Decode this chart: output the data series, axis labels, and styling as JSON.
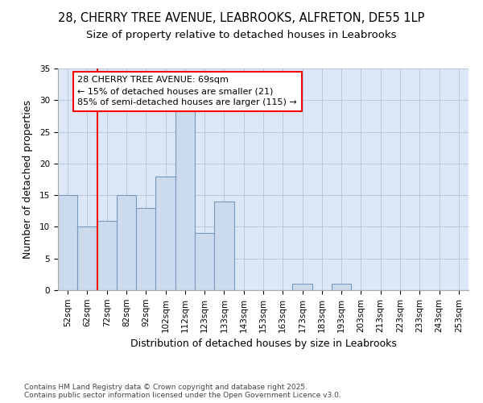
{
  "title_line1": "28, CHERRY TREE AVENUE, LEABROOKS, ALFRETON, DE55 1LP",
  "title_line2": "Size of property relative to detached houses in Leabrooks",
  "xlabel": "Distribution of detached houses by size in Leabrooks",
  "ylabel": "Number of detached properties",
  "categories": [
    "52sqm",
    "62sqm",
    "72sqm",
    "82sqm",
    "92sqm",
    "102sqm",
    "112sqm",
    "123sqm",
    "133sqm",
    "143sqm",
    "153sqm",
    "163sqm",
    "173sqm",
    "183sqm",
    "193sqm",
    "203sqm",
    "213sqm",
    "223sqm",
    "233sqm",
    "243sqm",
    "253sqm"
  ],
  "values": [
    15,
    10,
    11,
    15,
    13,
    18,
    29,
    9,
    14,
    0,
    0,
    0,
    1,
    0,
    1,
    0,
    0,
    0,
    0,
    0,
    0
  ],
  "bar_color": "#ccdaee",
  "bar_edge_color": "#7799bb",
  "bar_width": 1.0,
  "red_line_x": 1.5,
  "annotation_line1": "28 CHERRY TREE AVENUE: 69sqm",
  "annotation_line2": "← 15% of detached houses are smaller (21)",
  "annotation_line3": "85% of semi-detached houses are larger (115) →",
  "ylim": [
    0,
    35
  ],
  "yticks": [
    0,
    5,
    10,
    15,
    20,
    25,
    30,
    35
  ],
  "background_color": "#dce8f8",
  "grid_color": "#b8c8dc",
  "footer_text": "Contains HM Land Registry data © Crown copyright and database right 2025.\nContains public sector information licensed under the Open Government Licence v3.0.",
  "title_fontsize": 10.5,
  "subtitle_fontsize": 9.5,
  "axis_label_fontsize": 9,
  "tick_fontsize": 7.5,
  "annotation_fontsize": 8,
  "footer_fontsize": 6.5
}
